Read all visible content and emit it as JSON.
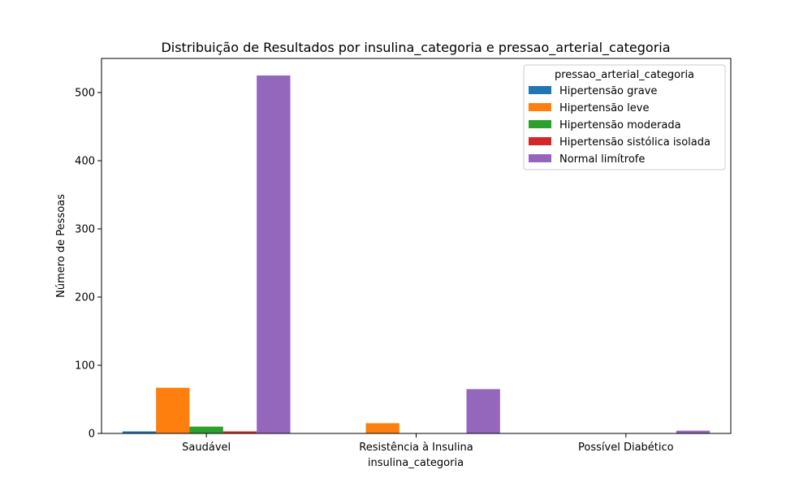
{
  "chart_data": {
    "type": "bar",
    "title": "Distribuição de Resultados por insulina_categoria e pressao_arterial_categoria",
    "xlabel": "insulina_categoria",
    "ylabel": "Número de Pessoas",
    "categories": [
      "Saudável",
      "Resistência à Insulina",
      "Possível Diabético"
    ],
    "ylim": [
      0,
      550
    ],
    "yticks": [
      0,
      100,
      200,
      300,
      400,
      500
    ],
    "grid": false,
    "legend": {
      "title": "pressao_arterial_categoria",
      "placement": "top-right"
    },
    "series": [
      {
        "name": "Hipertensão grave",
        "color": "#1f77b4",
        "values": [
          3,
          0,
          0
        ]
      },
      {
        "name": "Hipertensão leve",
        "color": "#ff7f0e",
        "values": [
          67,
          15,
          0
        ]
      },
      {
        "name": "Hipertensão moderada",
        "color": "#2ca02c",
        "values": [
          10,
          0,
          0
        ]
      },
      {
        "name": "Hipertensão sistólica isolada",
        "color": "#d62728",
        "values": [
          3,
          0,
          0
        ]
      },
      {
        "name": "Normal limítrofe",
        "color": "#9467bd",
        "values": [
          525,
          65,
          4
        ]
      }
    ]
  }
}
